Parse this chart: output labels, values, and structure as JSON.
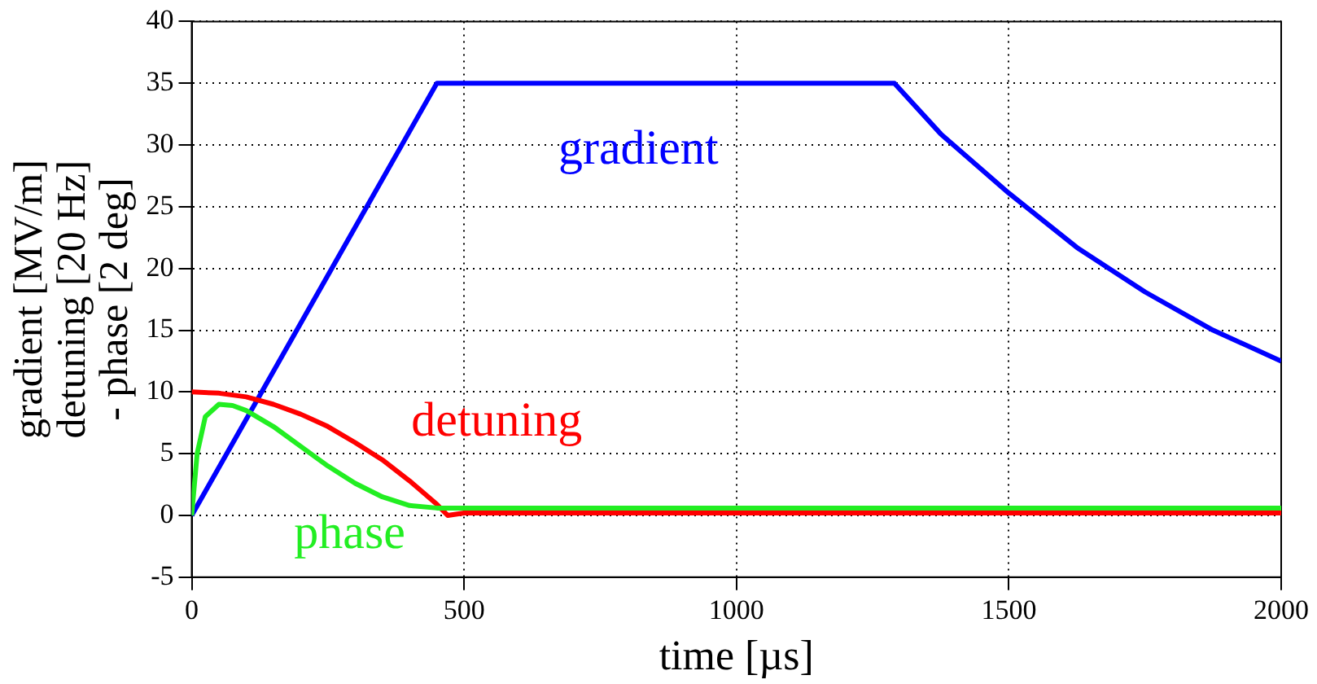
{
  "chart_data": {
    "type": "line",
    "xlabel": "time [µs]",
    "ylabel": [
      "gradient [MV/m]",
      "detuning [20 Hz]",
      "- phase [2 deg]"
    ],
    "xlim": [
      0,
      2000
    ],
    "xticks": [
      0,
      500,
      1000,
      1500,
      2000
    ],
    "ylim": [
      -5,
      40
    ],
    "yticks": [
      -5,
      0,
      5,
      10,
      15,
      20,
      25,
      30,
      35,
      40
    ],
    "grid": true,
    "legend": false,
    "marker": "none",
    "line_style": "solid",
    "series": [
      {
        "name": "gradient",
        "color": "#0000ff",
        "x": [
          0,
          450,
          1290,
          1375,
          1500,
          1625,
          1750,
          1875,
          2000
        ],
        "values": [
          0,
          35,
          35,
          30.9,
          26.1,
          21.7,
          18.1,
          15.0,
          12.5
        ]
      },
      {
        "name": "detuning",
        "color": "#ff0000",
        "x": [
          0,
          50,
          100,
          150,
          200,
          250,
          300,
          350,
          400,
          450,
          470,
          500,
          2000
        ],
        "values": [
          10,
          9.9,
          9.6,
          9.0,
          8.2,
          7.2,
          5.9,
          4.5,
          2.8,
          0.9,
          0,
          0.2,
          0.2
        ]
      },
      {
        "name": "phase",
        "color": "#22ee22",
        "x": [
          0,
          10,
          25,
          50,
          75,
          100,
          150,
          200,
          250,
          300,
          350,
          400,
          450,
          470,
          500,
          2000
        ],
        "values": [
          0,
          5,
          8,
          9,
          8.9,
          8.5,
          7.2,
          5.6,
          4.0,
          2.6,
          1.5,
          0.8,
          0.6,
          0.6,
          0.6,
          0.6
        ]
      }
    ]
  }
}
